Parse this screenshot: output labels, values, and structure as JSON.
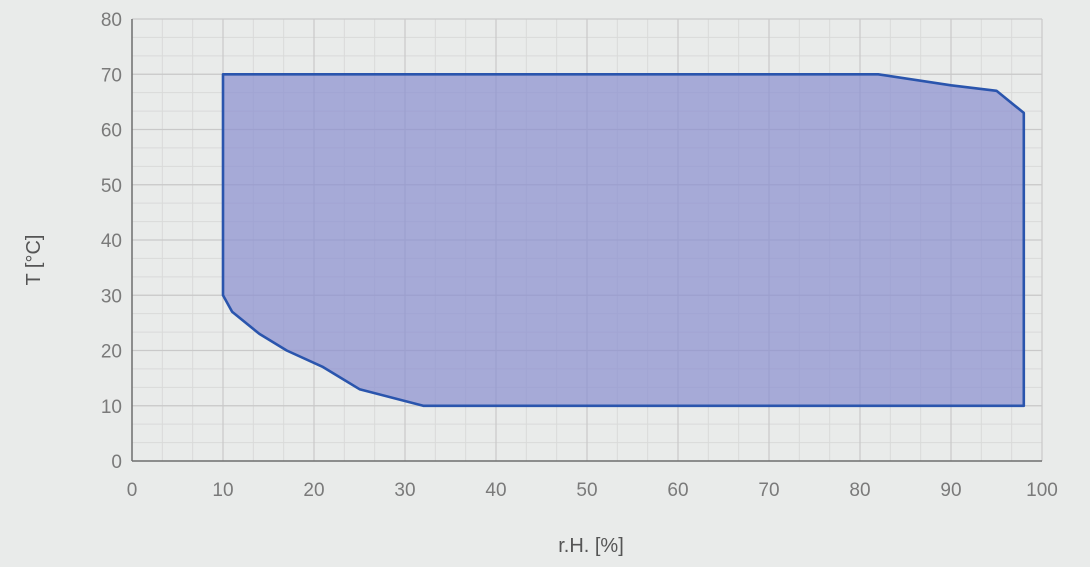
{
  "chart_data": {
    "type": "area",
    "xlabel": "r.H. [%]",
    "ylabel": "T [°C]",
    "xlim": [
      0,
      100
    ],
    "ylim": [
      0,
      80
    ],
    "x_ticks": [
      0,
      10,
      20,
      30,
      40,
      50,
      60,
      70,
      80,
      90,
      100
    ],
    "y_ticks": [
      0,
      10,
      20,
      30,
      40,
      50,
      60,
      70,
      80
    ],
    "minor_grid_step": 3.3333,
    "grid": true,
    "series": [
      {
        "points": [
          [
            10,
            70
          ],
          [
            82,
            70
          ],
          [
            90,
            68
          ],
          [
            95,
            67
          ],
          [
            98,
            63
          ],
          [
            98,
            10
          ],
          [
            32,
            10
          ],
          [
            25,
            13
          ],
          [
            21,
            17
          ],
          [
            17,
            20
          ],
          [
            14,
            23
          ],
          [
            11,
            27
          ],
          [
            10,
            30
          ]
        ]
      }
    ],
    "colors": {
      "fill": "#8c90d0",
      "stroke": "#2a55ad",
      "grid_major": "#c9c9c9",
      "grid_minor": "#d9dad9",
      "axis": "#6e6e6e",
      "background": "#e9ebea"
    }
  }
}
